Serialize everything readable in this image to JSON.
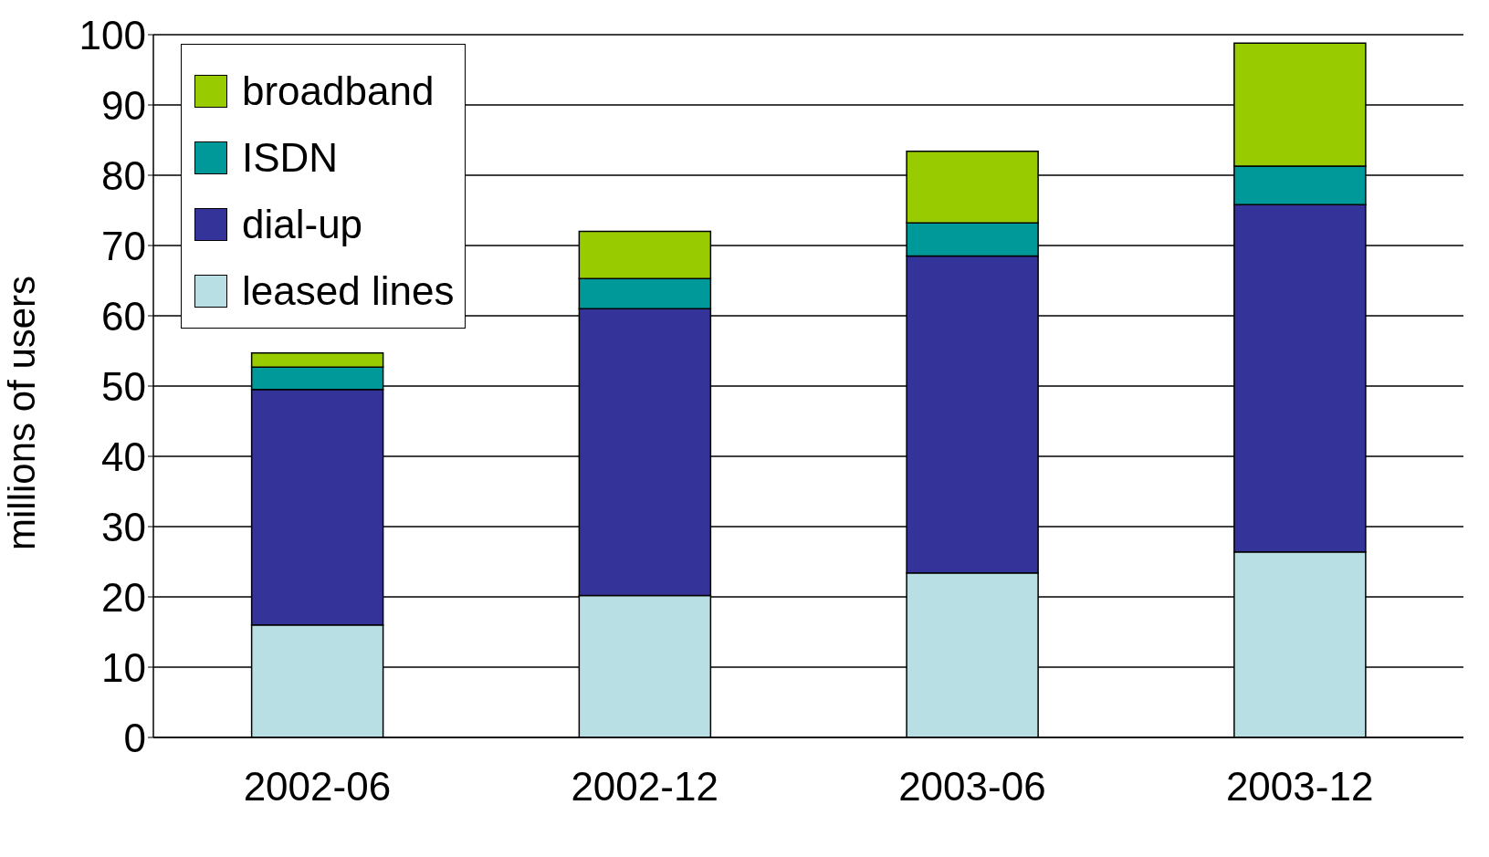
{
  "chart_data": {
    "type": "bar",
    "stacked": true,
    "ylabel": "millions of users",
    "categories": [
      "2002-06",
      "2002-12",
      "2003-06",
      "2003-12"
    ],
    "series": [
      {
        "name": "leased lines",
        "color": "#b8e0e4",
        "values": [
          16,
          20.2,
          23.4,
          26.4
        ]
      },
      {
        "name": "dial-up",
        "color": "#333399",
        "values": [
          33.5,
          40.8,
          45.1,
          49.4
        ]
      },
      {
        "name": "ISDN",
        "color": "#009999",
        "values": [
          3.2,
          4.3,
          4.7,
          5.5
        ]
      },
      {
        "name": "broadband",
        "color": "#99cc00",
        "values": [
          2,
          6.7,
          10.2,
          17.5
        ]
      }
    ],
    "ylim": [
      0,
      100
    ],
    "yticks": [
      0,
      10,
      20,
      30,
      40,
      50,
      60,
      70,
      80,
      90,
      100
    ],
    "grid": "y",
    "legend": "top left"
  }
}
